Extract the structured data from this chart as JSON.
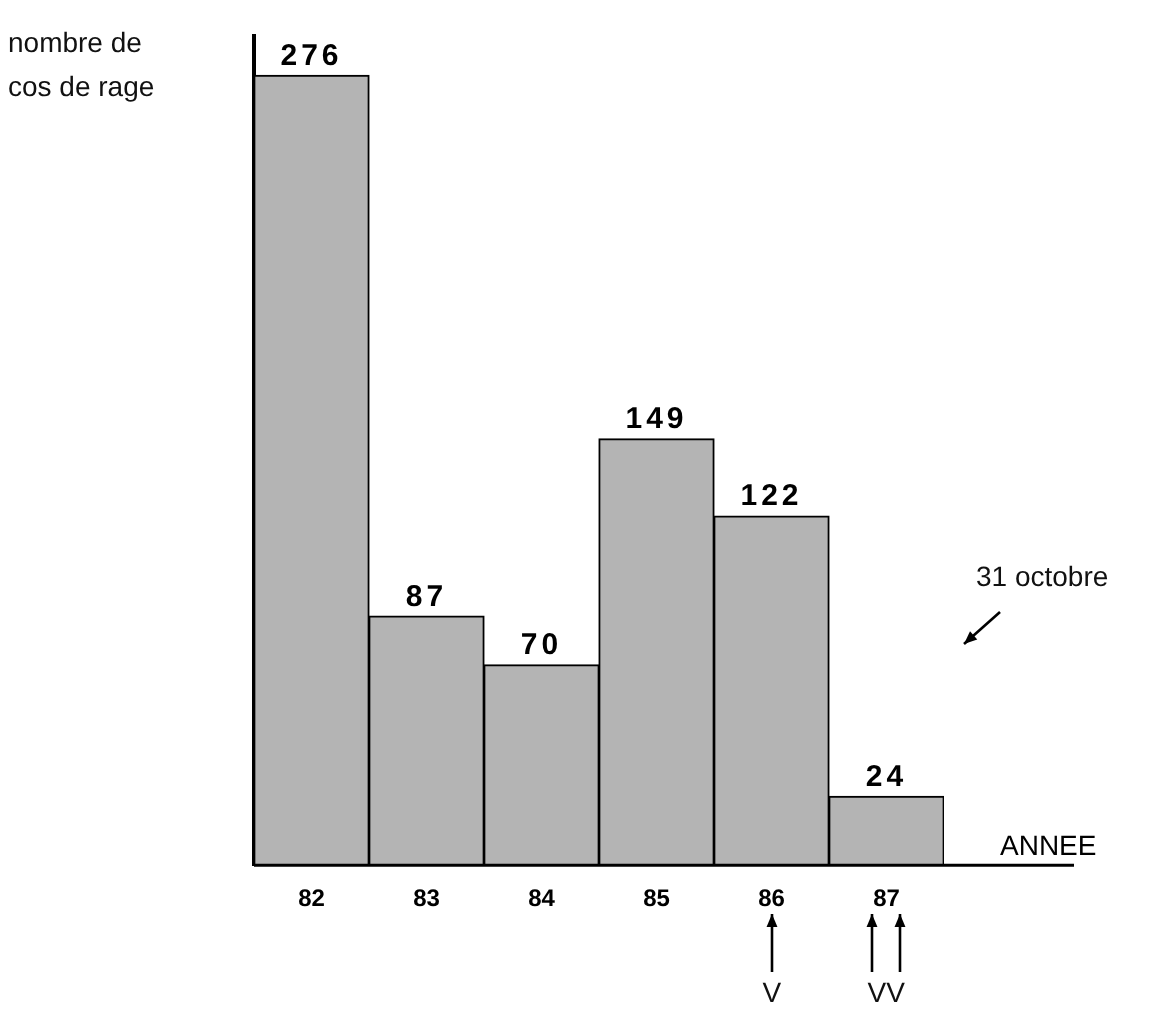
{
  "chart_data": {
    "type": "bar",
    "ylabel": "nombre de cos de rage",
    "xlabel": "ANNEE",
    "categories": [
      "82",
      "83",
      "84",
      "85",
      "86",
      "87"
    ],
    "values": [
      276,
      87,
      70,
      149,
      122,
      24
    ],
    "color": "#b4b4b4",
    "data_labels": true,
    "grid": false,
    "legend": false,
    "tick_labels": "x",
    "annotations": [
      "31 octobre",
      "V",
      "VV"
    ]
  }
}
